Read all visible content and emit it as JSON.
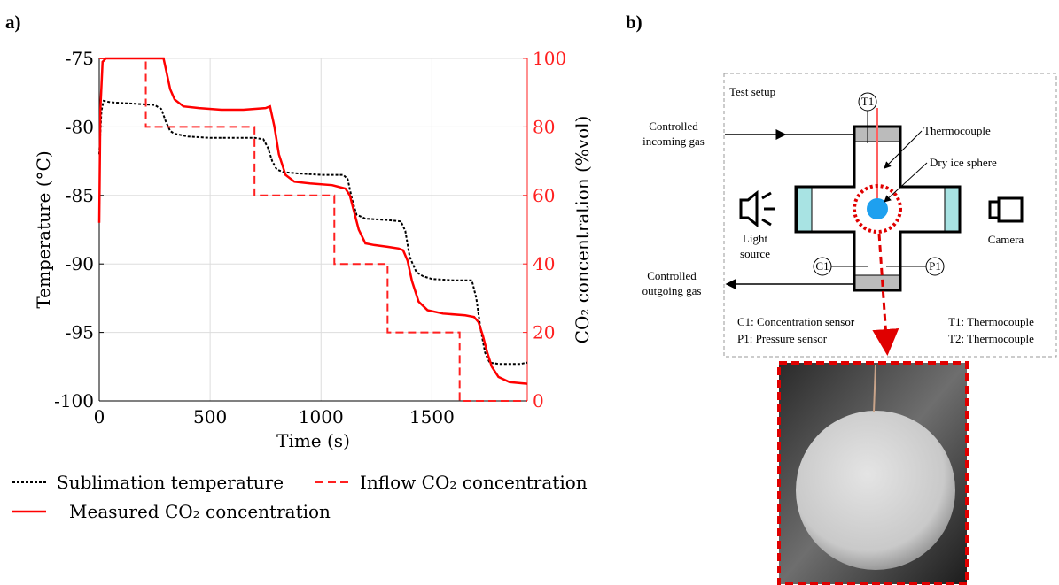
{
  "panel_labels": [
    "a)",
    "b)"
  ],
  "chart_data": {
    "type": "line",
    "xlabel": "Time (s)",
    "ylabel": "Temperature (°C)",
    "y2label": "CO₂ concentration (%vol)",
    "xlim": [
      0,
      1930
    ],
    "xticks": [
      0,
      500,
      1000,
      1500
    ],
    "ylim": [
      -100,
      -75
    ],
    "yticks": [
      -100,
      -95,
      -90,
      -85,
      -80,
      -75
    ],
    "y2lim": [
      0,
      100
    ],
    "y2ticks": [
      0,
      20,
      40,
      60,
      80,
      100
    ],
    "y2_color": "#ff2020",
    "grid": true,
    "series": [
      {
        "name": "Sublimation temperature",
        "color": "#000000",
        "dash": "dotted",
        "axis": "y",
        "x": [
          0,
          10,
          20,
          50,
          150,
          250,
          280,
          300,
          320,
          340,
          400,
          500,
          600,
          700,
          740,
          760,
          780,
          800,
          830,
          900,
          1000,
          1100,
          1120,
          1140,
          1160,
          1200,
          1300,
          1360,
          1380,
          1400,
          1430,
          1460,
          1500,
          1600,
          1680,
          1700,
          1720,
          1740,
          1760,
          1800,
          1900,
          1930
        ],
        "values": [
          -82,
          -78.8,
          -78.1,
          -78.2,
          -78.3,
          -78.4,
          -78.7,
          -79.6,
          -80.3,
          -80.5,
          -80.7,
          -80.8,
          -80.8,
          -80.8,
          -80.9,
          -81.5,
          -82.5,
          -83.1,
          -83.3,
          -83.4,
          -83.5,
          -83.5,
          -83.8,
          -85.3,
          -86.4,
          -86.7,
          -86.8,
          -86.9,
          -87.6,
          -89.5,
          -90.6,
          -90.9,
          -91.1,
          -91.2,
          -91.2,
          -92.5,
          -94.8,
          -96.5,
          -97.2,
          -97.3,
          -97.3,
          -97.2
        ]
      },
      {
        "name": "Inflow CO₂ concentration",
        "color": "#ff2020",
        "dash": "dashed",
        "axis": "y2",
        "x": [
          0,
          210,
          210,
          700,
          700,
          1060,
          1060,
          1300,
          1300,
          1625,
          1625,
          1930
        ],
        "values": [
          100,
          100,
          80,
          80,
          60,
          60,
          40,
          40,
          20,
          20,
          0,
          0
        ]
      },
      {
        "name": "Measured CO₂ concentration",
        "color": "#ff0000",
        "dash": "solid",
        "axis": "y2",
        "x": [
          0,
          5,
          15,
          30,
          100,
          200,
          290,
          300,
          320,
          340,
          380,
          450,
          550,
          650,
          750,
          770,
          790,
          810,
          840,
          880,
          950,
          1050,
          1110,
          1130,
          1150,
          1170,
          1200,
          1240,
          1300,
          1350,
          1370,
          1390,
          1410,
          1440,
          1480,
          1550,
          1650,
          1690,
          1710,
          1730,
          1750,
          1770,
          1800,
          1850,
          1930
        ],
        "values": [
          52,
          85,
          99,
          100,
          100,
          100,
          100,
          97,
          91,
          88,
          86,
          85.5,
          85,
          85,
          85.5,
          86,
          80,
          72,
          66,
          64,
          63.5,
          63,
          62,
          60,
          55,
          50,
          46,
          45.5,
          45,
          44.5,
          44,
          41,
          35,
          29,
          26.5,
          25.5,
          25,
          24.5,
          23,
          19,
          14,
          10,
          7,
          5.5,
          5
        ]
      }
    ]
  },
  "diagram": {
    "title": "Test setup",
    "incoming": [
      "Controlled",
      "incoming gas"
    ],
    "outgoing": [
      "Controlled",
      "outgoing gas"
    ],
    "thermocouple": "Thermocouple",
    "sphere": "Dry ice sphere",
    "light": [
      "Light",
      "source"
    ],
    "camera": "Camera",
    "t1": "T1",
    "c1": "C1",
    "p1": "P1",
    "legend": [
      "C1: Concentration sensor",
      "P1: Pressure sensor",
      "T1: Thermocouple",
      "T2: Thermocouple"
    ]
  }
}
